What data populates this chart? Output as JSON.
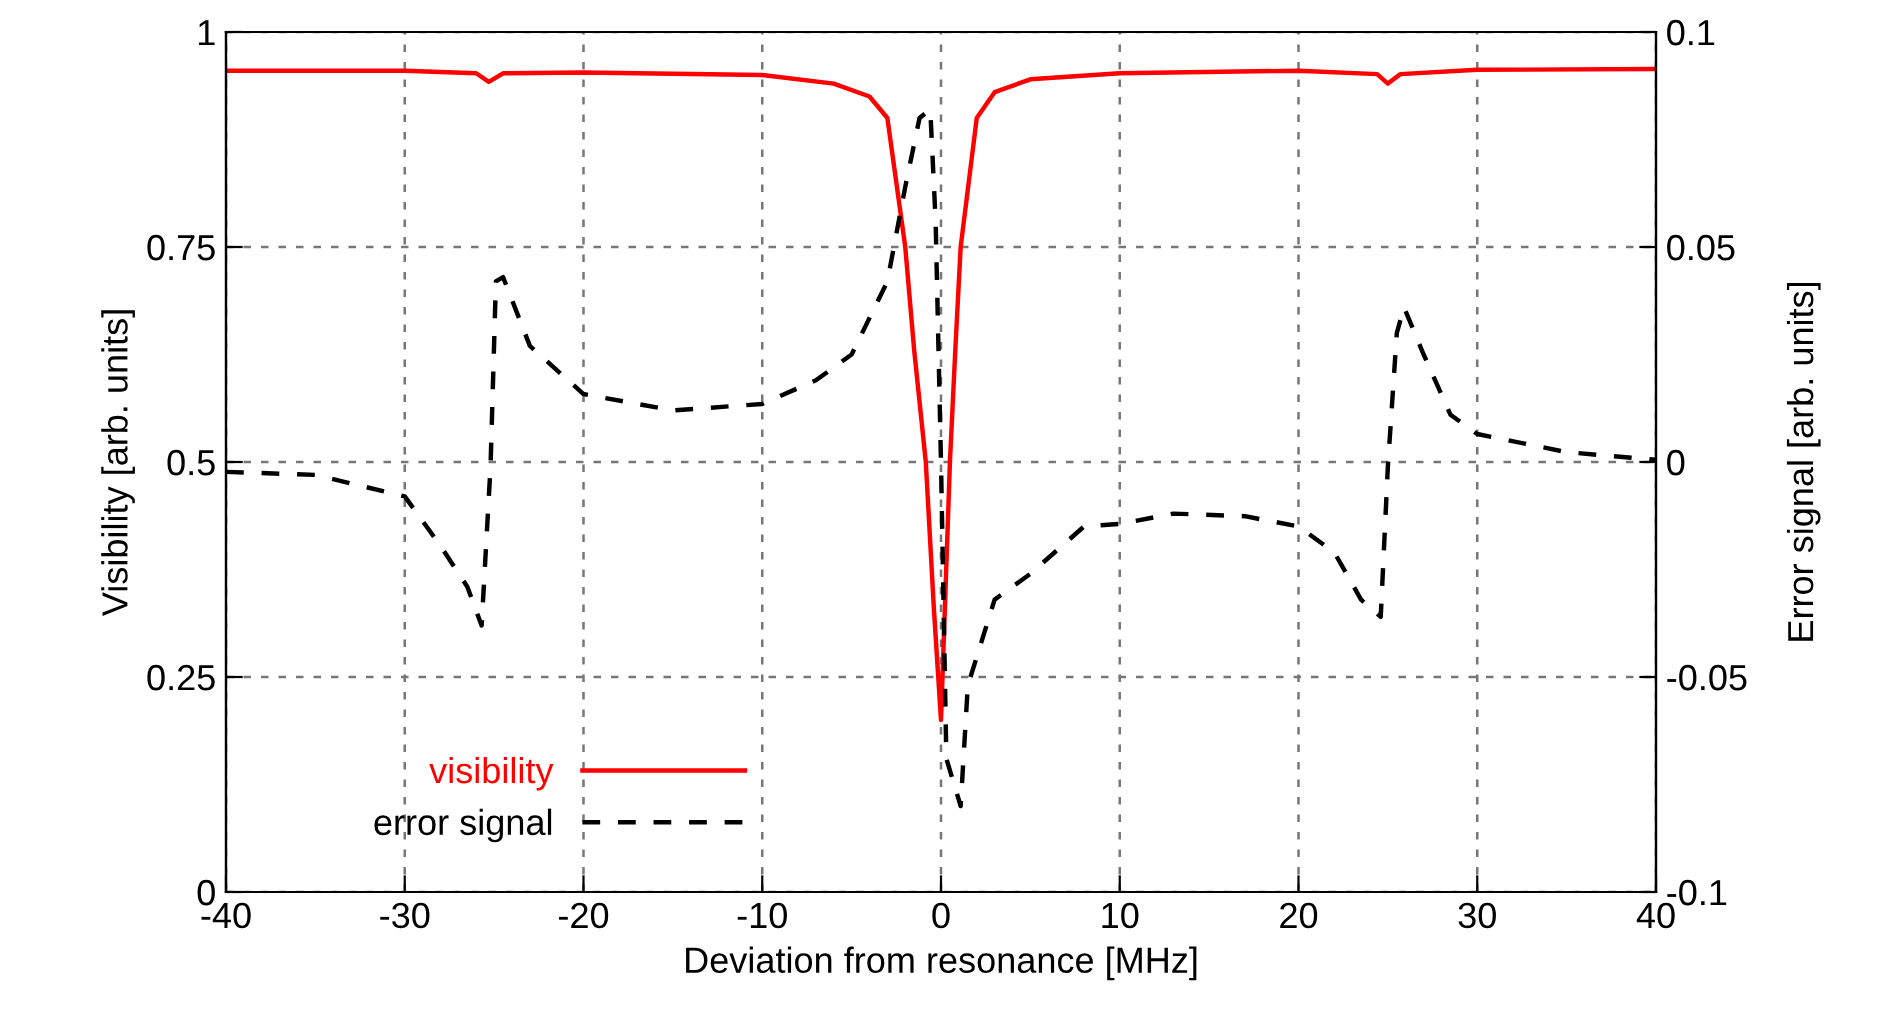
{
  "chart_data": {
    "type": "line",
    "xlabel": "Deviation from resonance [MHz]",
    "ylabel": "Visibility [arb. units]",
    "y2label": "Error signal [arb. units]",
    "xlim": [
      -40,
      40
    ],
    "xticks": [
      -40,
      -30,
      -20,
      -10,
      0,
      10,
      20,
      30,
      40
    ],
    "ylim": [
      0,
      1
    ],
    "yticks": [
      0,
      0.25,
      0.5,
      0.75,
      1
    ],
    "y2lim": [
      -0.1,
      0.1
    ],
    "y2ticks": [
      -0.1,
      -0.05,
      0,
      0.05,
      0.1
    ],
    "grid": true,
    "legend": "bottom left",
    "series": [
      {
        "name": "visibility",
        "color": "#ff0000",
        "line_style": "solid",
        "x": [
          -40,
          -30,
          -26,
          -25.3,
          -24.5,
          -20,
          -10,
          -6,
          -4,
          -3,
          -2,
          -1.5,
          -0.85,
          -0.4,
          0,
          0.5,
          0.8,
          1.1,
          2,
          3,
          5,
          10,
          20,
          24.4,
          25,
          25.7,
          30,
          40
        ],
        "values": [
          0.955,
          0.955,
          0.952,
          0.942,
          0.952,
          0.953,
          0.95,
          0.94,
          0.925,
          0.9,
          0.75,
          0.63,
          0.5,
          0.33,
          0.2,
          0.5,
          0.63,
          0.75,
          0.9,
          0.93,
          0.945,
          0.952,
          0.955,
          0.951,
          0.94,
          0.951,
          0.956,
          0.957
        ]
      },
      {
        "name": "error signal",
        "color": "#000000",
        "line_style": "dashed",
        "axis": "y2",
        "x": [
          -40,
          -35,
          -30,
          -28,
          -26.5,
          -25.7,
          -25.2,
          -24.9,
          -24.5,
          -23,
          -20,
          -15,
          -10,
          -7,
          -5,
          -3,
          -2,
          -1.2,
          -0.6,
          -0.3,
          0,
          0.3,
          1.1,
          1.5,
          3,
          5,
          8,
          10,
          13,
          17,
          20,
          22,
          23.5,
          24.6,
          25,
          25.5,
          25.9,
          27,
          28.5,
          30,
          35,
          40
        ],
        "values": [
          -0.0023,
          -0.003,
          -0.008,
          -0.0195,
          -0.029,
          -0.038,
          -0.001,
          0.042,
          0.043,
          0.027,
          0.0158,
          0.012,
          0.0135,
          0.019,
          0.025,
          0.042,
          0.064,
          0.08,
          0.082,
          0.056,
          0,
          -0.069,
          -0.08,
          -0.052,
          -0.032,
          -0.026,
          -0.015,
          -0.0144,
          -0.012,
          -0.0126,
          -0.015,
          -0.021,
          -0.032,
          -0.036,
          -0.001,
          0.03,
          0.036,
          0.025,
          0.011,
          0.0065,
          0.0023,
          0.0005
        ]
      }
    ]
  }
}
